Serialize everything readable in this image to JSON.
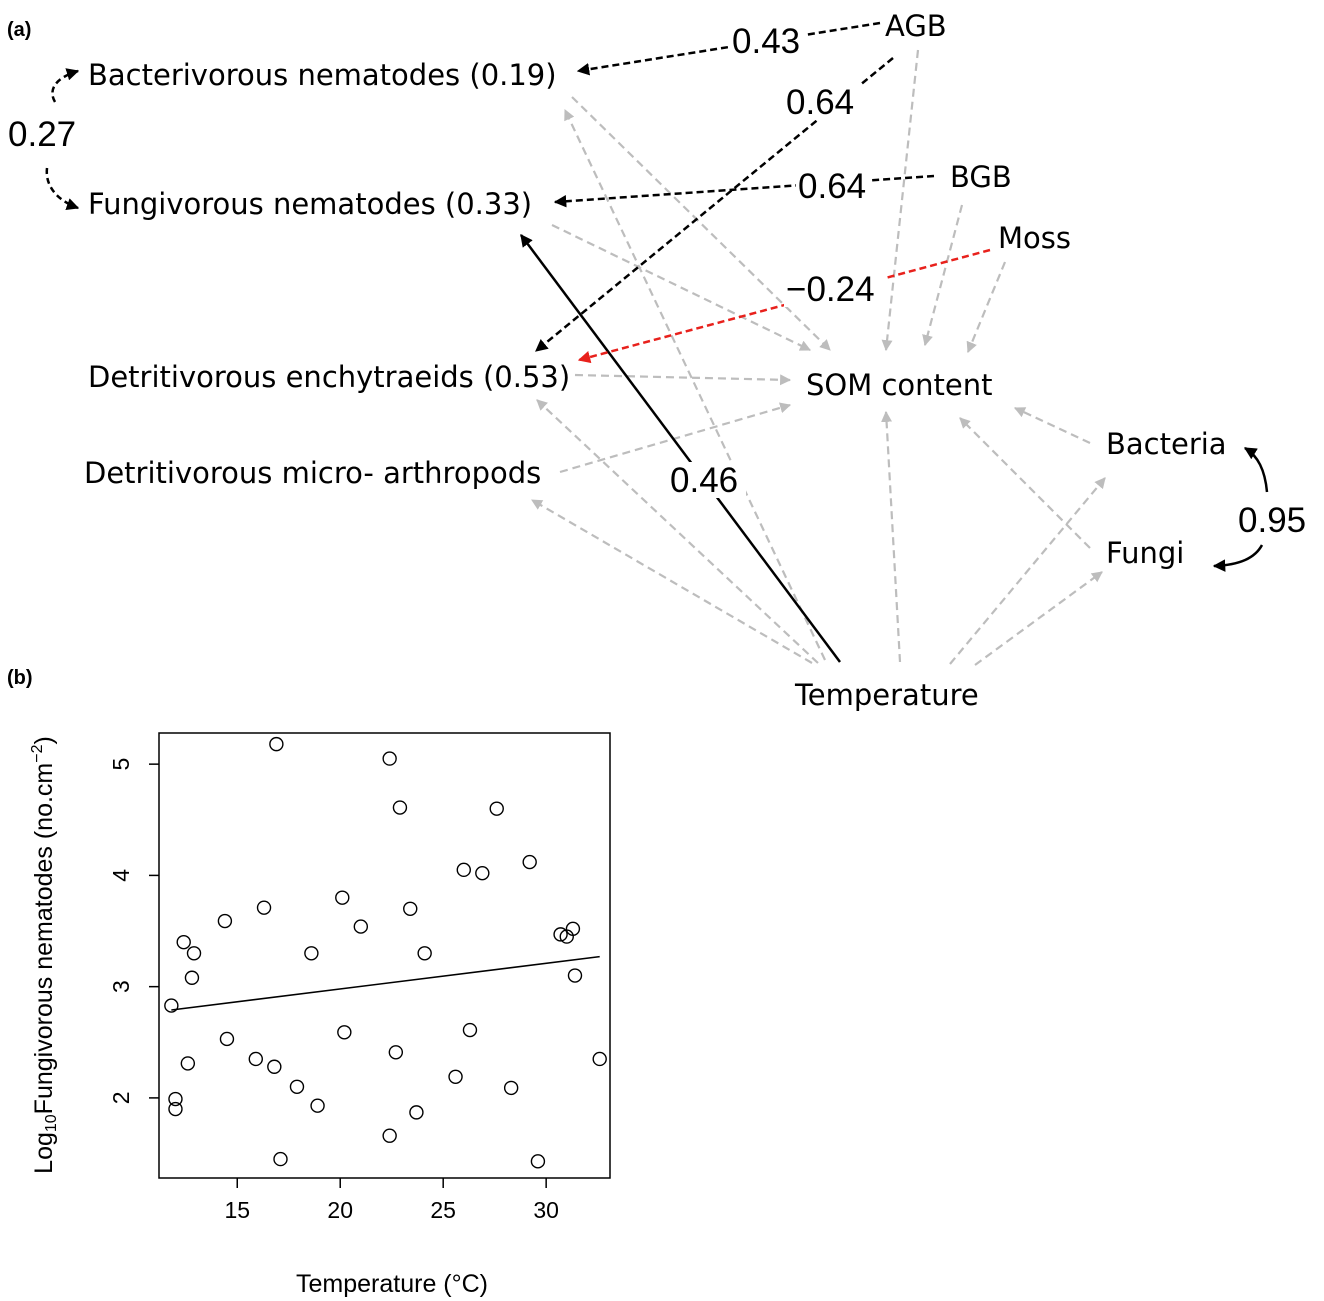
{
  "panel_a": {
    "label": "(a)",
    "nodes": {
      "bacterivorous": "Bacterivorous nematodes (0.19)",
      "fungivorous": "Fungivorous nematodes (0.33)",
      "enchytraeids": "Detritivorous enchytraeids (0.53)",
      "microarthropods": "Detritivorous micro- arthropods",
      "agb": "AGB",
      "bgb": "BGB",
      "moss": "Moss",
      "som": "SOM content",
      "bacteria": "Bacteria",
      "fungi": "Fungi",
      "temperature": "Temperature"
    },
    "coefficients": {
      "bact_fung": "0.27",
      "agb_bact": "0.43",
      "agb_ench": "0.64",
      "bgb_fung": "0.64",
      "moss_ench": "−0.24",
      "temp_fung": "0.46",
      "bacteria_fungi": "0.95"
    },
    "colors": {
      "significant": "#000000",
      "negative": "#e8211c",
      "nonsignificant": "#bdbdbd"
    }
  },
  "panel_b": {
    "label": "(b)",
    "chart_data": {
      "type": "scatter",
      "xlabel": "Temperature (°C)",
      "ylabel_main": "Fungivorous nematodes (no.cm",
      "ylabel_prefix": "Log",
      "ylabel_sub": "10",
      "ylabel_sup": "−2",
      "ylabel_close": ")",
      "xlim": [
        11.2,
        33.1
      ],
      "ylim": [
        1.28,
        5.28
      ],
      "xticks": [
        "15",
        "20",
        "25",
        "30"
      ],
      "yticks": [
        "2",
        "3",
        "4",
        "5"
      ],
      "points": [
        {
          "x": 11.8,
          "y": 2.83
        },
        {
          "x": 12.0,
          "y": 1.99
        },
        {
          "x": 12.0,
          "y": 1.9
        },
        {
          "x": 12.4,
          "y": 3.4
        },
        {
          "x": 12.6,
          "y": 2.31
        },
        {
          "x": 12.8,
          "y": 3.08
        },
        {
          "x": 12.9,
          "y": 3.3
        },
        {
          "x": 14.4,
          "y": 3.59
        },
        {
          "x": 14.5,
          "y": 2.53
        },
        {
          "x": 15.9,
          "y": 2.35
        },
        {
          "x": 16.3,
          "y": 3.71
        },
        {
          "x": 16.8,
          "y": 2.28
        },
        {
          "x": 16.9,
          "y": 5.18
        },
        {
          "x": 17.1,
          "y": 1.45
        },
        {
          "x": 17.9,
          "y": 2.1
        },
        {
          "x": 18.6,
          "y": 3.3
        },
        {
          "x": 18.9,
          "y": 1.93
        },
        {
          "x": 20.1,
          "y": 3.8
        },
        {
          "x": 20.2,
          "y": 2.59
        },
        {
          "x": 21.0,
          "y": 3.54
        },
        {
          "x": 22.4,
          "y": 5.05
        },
        {
          "x": 22.4,
          "y": 1.66
        },
        {
          "x": 22.7,
          "y": 2.41
        },
        {
          "x": 22.9,
          "y": 4.61
        },
        {
          "x": 23.4,
          "y": 3.7
        },
        {
          "x": 23.7,
          "y": 1.87
        },
        {
          "x": 24.1,
          "y": 3.3
        },
        {
          "x": 25.6,
          "y": 2.19
        },
        {
          "x": 26.0,
          "y": 4.05
        },
        {
          "x": 26.3,
          "y": 2.61
        },
        {
          "x": 26.9,
          "y": 4.02
        },
        {
          "x": 27.6,
          "y": 4.6
        },
        {
          "x": 28.3,
          "y": 2.09
        },
        {
          "x": 29.2,
          "y": 4.12
        },
        {
          "x": 29.6,
          "y": 1.43
        },
        {
          "x": 30.7,
          "y": 3.47
        },
        {
          "x": 31.0,
          "y": 3.45
        },
        {
          "x": 31.3,
          "y": 3.52
        },
        {
          "x": 31.4,
          "y": 3.1
        },
        {
          "x": 32.6,
          "y": 2.35
        }
      ],
      "fit": {
        "x": [
          11.8,
          32.6
        ],
        "y": [
          2.79,
          3.27
        ]
      },
      "grid": false
    }
  }
}
